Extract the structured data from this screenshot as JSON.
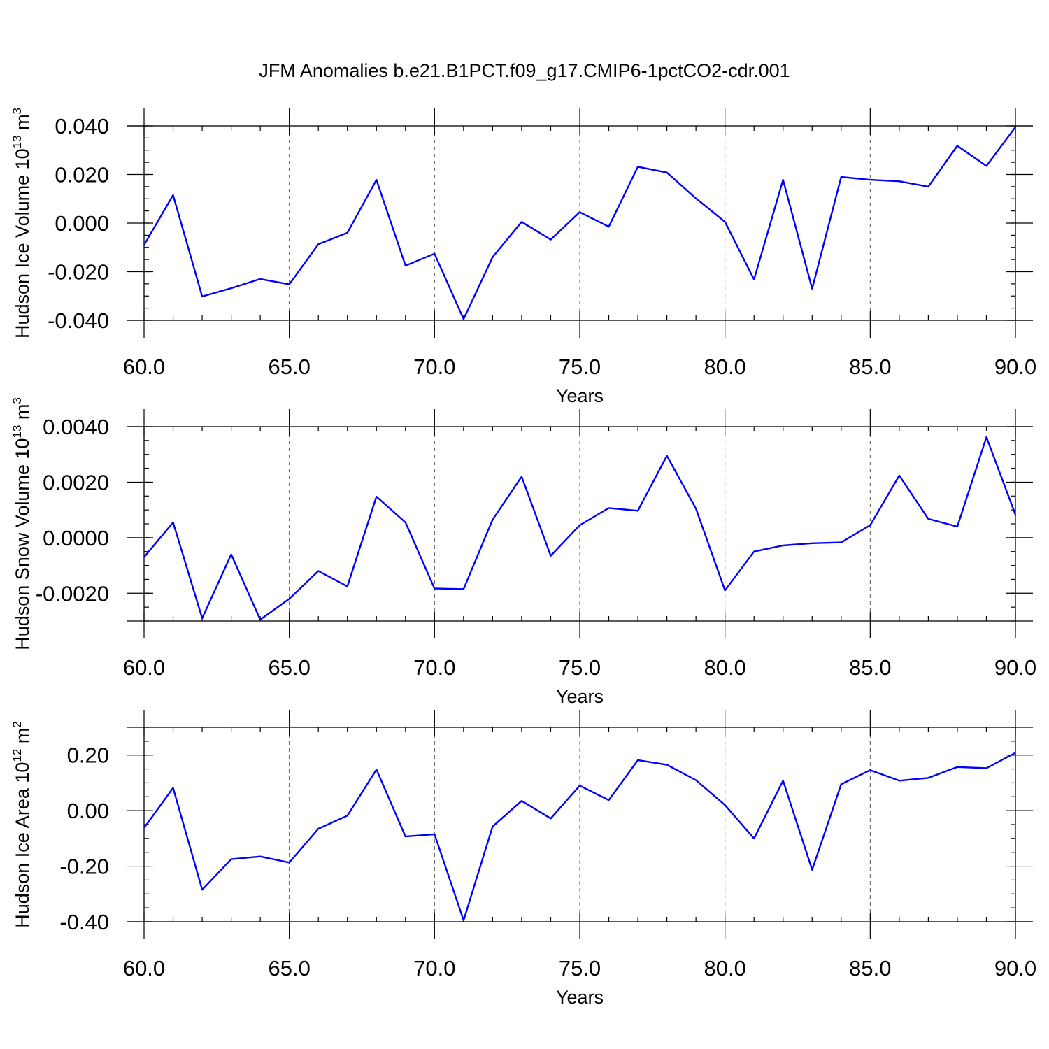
{
  "title": "JFM Anomalies b.e21.B1PCT.f09_g17.CMIP6-1pctCO2-cdr.001",
  "chart_data": [
    {
      "type": "line",
      "title": "",
      "xlabel": "Years",
      "ylabel_prefix": "Hudson Ice Volume 10",
      "ylabel_exp": "13",
      "ylabel_unit": " m",
      "ylabel_unit_exp": "3",
      "xlim": [
        60,
        90
      ],
      "ylim": [
        -0.04,
        0.04
      ],
      "xticks": [
        60,
        65,
        70,
        75,
        80,
        85,
        90
      ],
      "xtick_labels": [
        "60.0",
        "65.0",
        "70.0",
        "75.0",
        "80.0",
        "85.0",
        "90.0"
      ],
      "yticks": [
        -0.04,
        -0.02,
        0.0,
        0.02,
        0.04
      ],
      "ytick_labels": [
        "-0.040",
        "-0.020",
        "0.000",
        "0.020",
        "0.040"
      ],
      "y_minor_step": 0.005,
      "grid": "vertical dashed at major x ticks",
      "color": "#0000ff",
      "x": [
        60,
        61,
        62,
        63,
        64,
        65,
        66,
        67,
        68,
        69,
        70,
        71,
        72,
        73,
        74,
        75,
        76,
        77,
        78,
        79,
        80,
        81,
        82,
        83,
        84,
        85,
        86,
        87,
        88,
        89,
        90
      ],
      "values": [
        -0.009,
        0.0115,
        -0.0302,
        -0.0268,
        -0.023,
        -0.0252,
        -0.0087,
        -0.004,
        0.0178,
        -0.0175,
        -0.0126,
        -0.0395,
        -0.014,
        0.0005,
        -0.0068,
        0.0045,
        -0.0015,
        0.0232,
        0.0208,
        0.0102,
        0.0005,
        -0.0232,
        0.0178,
        -0.027,
        0.019,
        0.0178,
        0.0172,
        0.015,
        0.0318,
        0.0235,
        0.0395
      ]
    },
    {
      "type": "line",
      "title": "",
      "xlabel": "Years",
      "ylabel_prefix": "Hudson Snow Volume 10",
      "ylabel_exp": "13",
      "ylabel_unit": " m",
      "ylabel_unit_exp": "3",
      "xlim": [
        60,
        90
      ],
      "ylim": [
        -0.003,
        0.004
      ],
      "xticks": [
        60,
        65,
        70,
        75,
        80,
        85,
        90
      ],
      "xtick_labels": [
        "60.0",
        "65.0",
        "70.0",
        "75.0",
        "80.0",
        "85.0",
        "90.0"
      ],
      "yticks": [
        -0.002,
        0.0,
        0.002,
        0.004
      ],
      "ytick_labels": [
        "-0.0020",
        "0.0000",
        "0.0020",
        "0.0040"
      ],
      "y_minor_step": 0.0005,
      "grid": "vertical dashed at major x ticks",
      "color": "#0000ff",
      "x": [
        60,
        61,
        62,
        63,
        64,
        65,
        66,
        67,
        68,
        69,
        70,
        71,
        72,
        73,
        74,
        75,
        76,
        77,
        78,
        79,
        80,
        81,
        82,
        83,
        84,
        85,
        86,
        87,
        88,
        89,
        90
      ],
      "values": [
        -0.0007,
        0.00055,
        -0.0029,
        -0.0006,
        -0.00295,
        -0.0022,
        -0.0012,
        -0.00175,
        0.00148,
        0.00055,
        -0.00183,
        -0.00185,
        0.00065,
        0.0022,
        -0.00065,
        0.00045,
        0.00107,
        0.00097,
        0.00295,
        0.00105,
        -0.0019,
        -0.0005,
        -0.00028,
        -0.0002,
        -0.00017,
        0.00045,
        0.00224,
        0.00068,
        0.0004,
        0.00362,
        0.00083
      ]
    },
    {
      "type": "line",
      "title": "",
      "xlabel": "Years",
      "ylabel_prefix": "Hudson Ice Area 10",
      "ylabel_exp": "12",
      "ylabel_unit": " m",
      "ylabel_unit_exp": "2",
      "xlim": [
        60,
        90
      ],
      "ylim": [
        -0.4,
        0.3
      ],
      "xticks": [
        60,
        65,
        70,
        75,
        80,
        85,
        90
      ],
      "xtick_labels": [
        "60.0",
        "65.0",
        "70.0",
        "75.0",
        "80.0",
        "85.0",
        "90.0"
      ],
      "yticks": [
        -0.4,
        -0.2,
        0.0,
        0.2
      ],
      "ytick_labels": [
        "-0.40",
        "-0.20",
        "0.00",
        "0.20"
      ],
      "y_minor_step": 0.05,
      "grid": "vertical dashed at major x ticks",
      "color": "#0000ff",
      "x": [
        60,
        61,
        62,
        63,
        64,
        65,
        66,
        67,
        68,
        69,
        70,
        71,
        72,
        73,
        74,
        75,
        76,
        77,
        78,
        79,
        80,
        81,
        82,
        83,
        84,
        85,
        86,
        87,
        88,
        89,
        90
      ],
      "values": [
        -0.062,
        0.082,
        -0.285,
        -0.175,
        -0.165,
        -0.187,
        -0.065,
        -0.018,
        0.148,
        -0.093,
        -0.085,
        -0.395,
        -0.057,
        0.035,
        -0.028,
        0.09,
        0.038,
        0.182,
        0.165,
        0.11,
        0.02,
        -0.1,
        0.108,
        -0.213,
        0.095,
        0.146,
        0.108,
        0.118,
        0.157,
        0.153,
        0.208
      ]
    }
  ]
}
